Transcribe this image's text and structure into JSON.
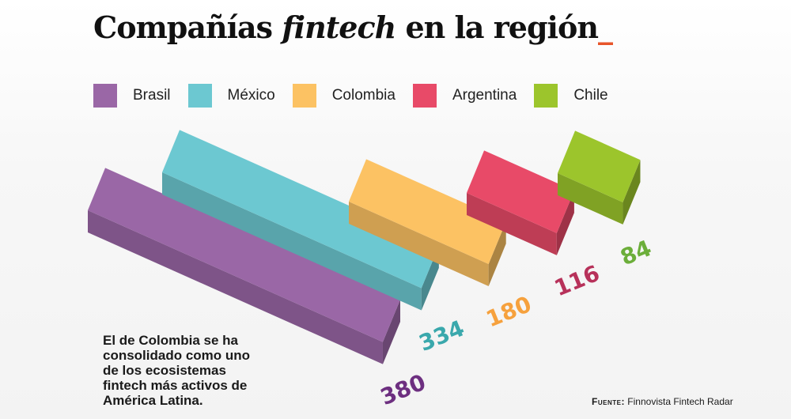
{
  "title": {
    "prefix": "Compañías ",
    "emph": "fintech",
    "suffix": " en la región",
    "cursor": "_"
  },
  "chart_data": {
    "type": "bar",
    "title": "Compañías fintech en la región",
    "categories": [
      "Brasil",
      "México",
      "Colombia",
      "Argentina",
      "Chile"
    ],
    "values": [
      380,
      334,
      180,
      116,
      84
    ],
    "colors": {
      "Brasil": "#9a67a6",
      "México": "#6cc8d1",
      "Colombia": "#fcc263",
      "Argentina": "#e84a68",
      "Chile": "#9cc52c"
    },
    "label_colors": {
      "Brasil": "#6d2f80",
      "México": "#3aa8ac",
      "Colombia": "#f6a13d",
      "Argentina": "#b7315a",
      "Chile": "#6cae3a"
    },
    "style": "isometric 3D bars",
    "legend_position": "top"
  },
  "note": "El de Colombia se ha consolidado como uno de los ecosistemas fintech más activos de América Latina.",
  "source": {
    "label": "Fuente:",
    "text": "Finnovista Fintech Radar"
  }
}
